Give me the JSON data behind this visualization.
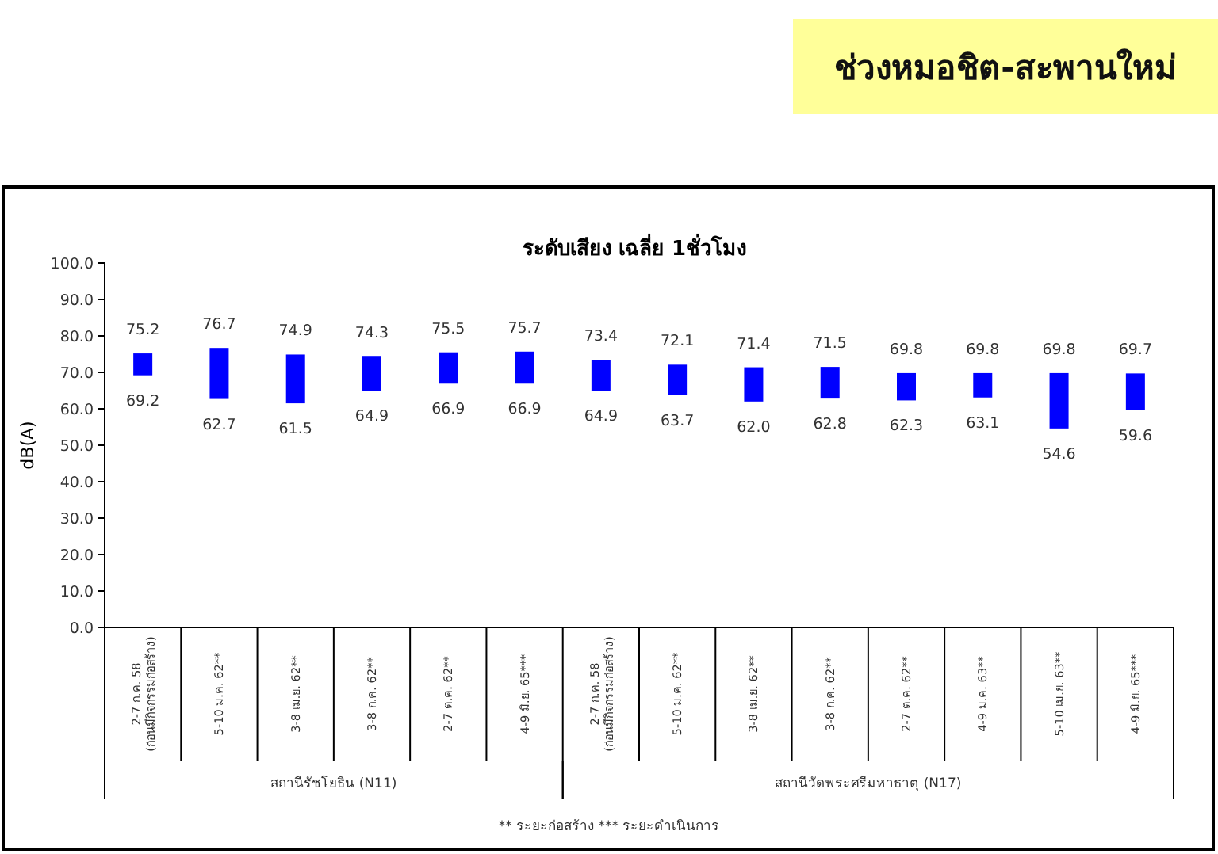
{
  "chart_data": {
    "type": "bar",
    "title": "ช่วงหมอชิต-สะพานใหม่",
    "subtitle": "ระดับเสียง เฉลี่ย 1ชั่วโมง",
    "ylabel": "dB(A)",
    "categories": [
      "2-7 ก.ค. 58\n(ก่อนมีกิจกรรมก่อสร้าง)",
      "5-10 ม.ค. 62**",
      "3-8 เม.ย. 62**",
      "3-8 ก.ค. 62**",
      "2-7 ต.ค. 62**",
      "4-9 มิ.ย. 65***",
      "2-7 ก.ค. 58\n(ก่อนมีกิจกรรมก่อสร้าง)",
      "5-10 ม.ค. 62**",
      "3-8 เม.ย. 62**",
      "3-8 ก.ค. 62**",
      "2-7 ต.ค. 62**",
      "4-9 ม.ค. 63**",
      "5-10 เม.ย. 63**",
      "4-9 มิ.ย. 65***"
    ],
    "base": [
      69.2,
      62.7,
      61.5,
      64.9,
      66.9,
      66.9,
      64.9,
      63.7,
      62.0,
      62.8,
      62.3,
      63.1,
      54.6,
      59.6
    ],
    "values": [
      6.0,
      14.0,
      13.4,
      9.4,
      8.6,
      8.8,
      8.5,
      8.4,
      9.4,
      8.7,
      7.5,
      6.7,
      15.2,
      10.1
    ],
    "color": "#0000ff",
    "value_labels": [
      "75.2",
      "76.7",
      "74.9",
      "74.3",
      "75.5",
      "75.7",
      "73.4",
      "72.1",
      "71.4",
      "71.5",
      "69.8",
      "69.8",
      "69.8",
      "69.7"
    ],
    "annotations": [
      "สถานีรัชโยธิน (N11)",
      "สถานีวัดพระศรีมหาธาตุ (N17)",
      "** ระยะก่อสร้าง    *** ระยะดำเนินการ",
      {
        "text": "69.2",
        "y": 69.2
      },
      {
        "text": "62.7",
        "y": 62.7
      },
      {
        "text": "61.5",
        "y": 61.5
      },
      {
        "text": "64.9",
        "y": 64.9
      },
      {
        "text": "66.9",
        "y": 66.9
      },
      {
        "text": "66.9",
        "y": 66.9
      },
      {
        "text": "64.9",
        "y": 64.9
      },
      {
        "text": "63.7",
        "y": 63.7
      },
      {
        "text": "62.0",
        "y": 62.0
      },
      {
        "text": "62.8",
        "y": 62.8
      },
      {
        "text": "62.3",
        "y": 62.3
      },
      {
        "text": "63.1",
        "y": 63.1
      },
      {
        "text": "54.6",
        "y": 54.6
      },
      {
        "text": "59.6",
        "y": 59.6
      }
    ],
    "ylim": [
      0,
      100
    ],
    "yticks": [
      {
        "value": 0,
        "label": "0.0"
      },
      {
        "value": 10,
        "label": "10.0"
      },
      {
        "value": 20,
        "label": "20.0"
      },
      {
        "value": 30,
        "label": "30.0"
      },
      {
        "value": 40,
        "label": "40.0"
      },
      {
        "value": 50,
        "label": "50.0"
      },
      {
        "value": 60,
        "label": "60.0"
      },
      {
        "value": 70,
        "label": "70.0"
      },
      {
        "value": 80,
        "label": "80.0"
      },
      {
        "value": 90,
        "label": "90.0"
      },
      {
        "value": 100,
        "label": "100.0"
      }
    ],
    "grid": false
  }
}
